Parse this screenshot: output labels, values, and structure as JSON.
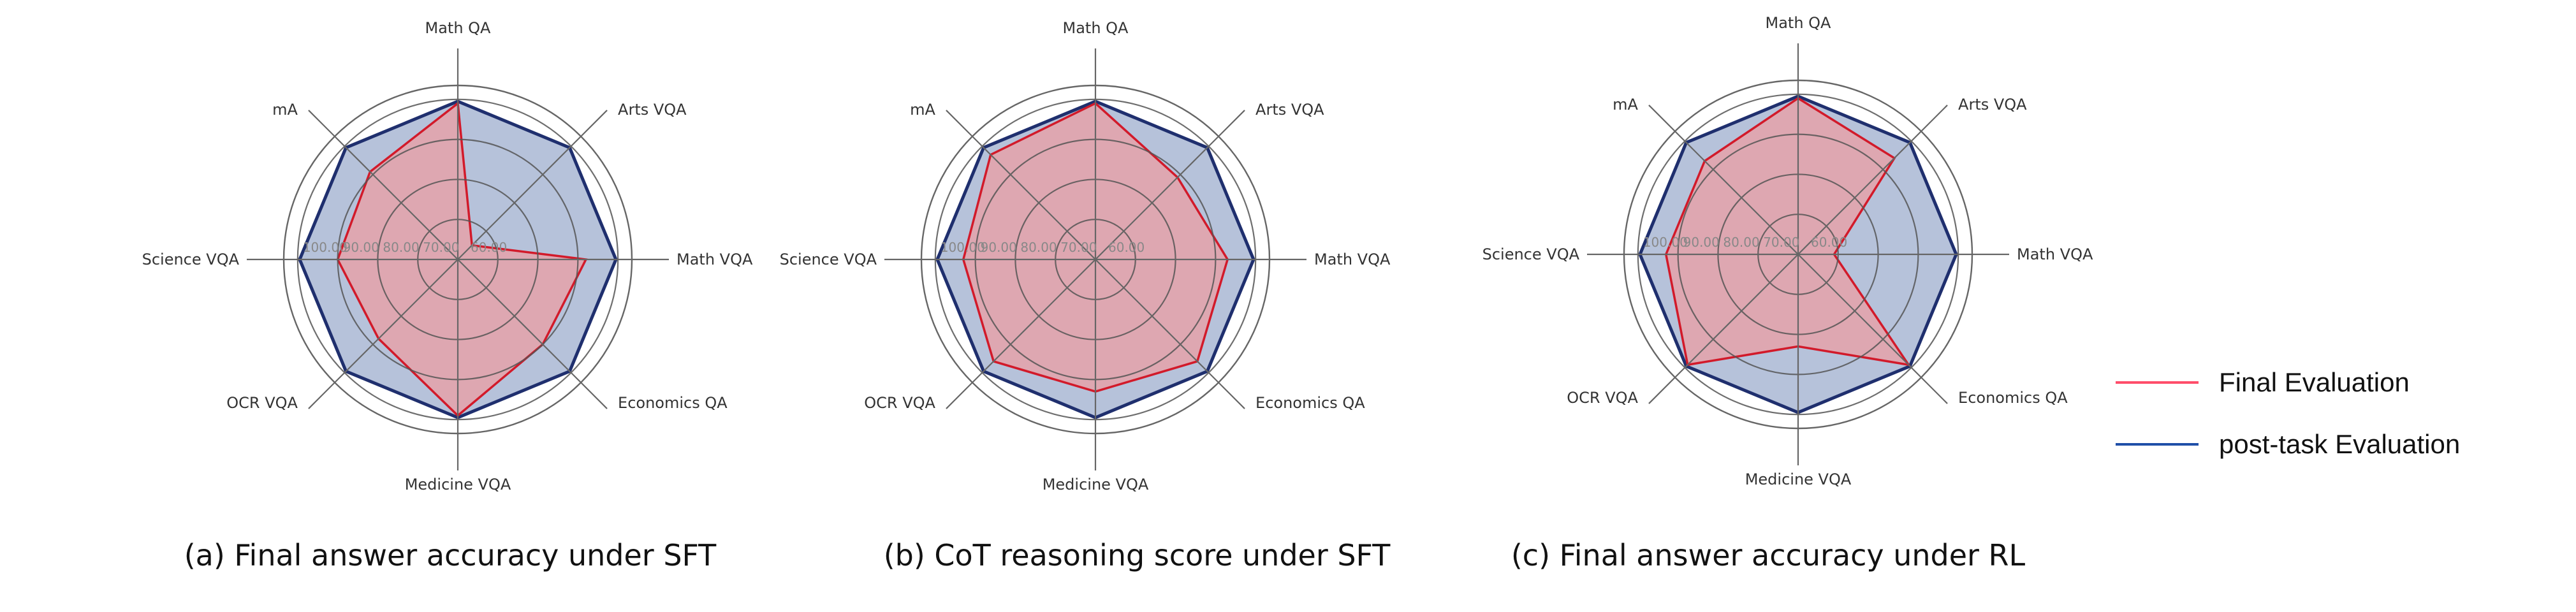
{
  "colors": {
    "final_line": "#d21a2a",
    "final_fill": "#e8a0a6",
    "post_line": "#1f2f6e",
    "post_fill": "#a9b7d4",
    "grid": "#555555",
    "legend_final": "#ff4d6a",
    "legend_post": "#1f4fa8"
  },
  "legend": {
    "final": "Final Evaluation",
    "post": "post-task Evaluation"
  },
  "chart_data": [
    {
      "type": "radar",
      "caption": "(a) Final answer accuracy under SFT",
      "axes": [
        "Math QA",
        "Arts VQA",
        "Math VQA",
        "Economics QA",
        "Medicine VQA",
        "OCR VQA",
        "Science VQA",
        "mA"
      ],
      "ticks": [
        "60.00",
        "70.00",
        "80.00",
        "90.00",
        "100.00"
      ],
      "rlim": [
        60,
        100
      ],
      "series": [
        {
          "name": "post-task Evaluation",
          "values": [
            99.5,
            99.5,
            99.5,
            99.5,
            99.5,
            99.5,
            99.5,
            99.5
          ]
        },
        {
          "name": "Final Evaluation",
          "values": [
            99,
            65,
            92,
            90,
            99,
            88,
            90,
            91
          ]
        }
      ]
    },
    {
      "type": "radar",
      "caption": "(b) CoT reasoning score under SFT",
      "axes": [
        "Math QA",
        "Arts VQA",
        "Math VQA",
        "Economics QA",
        "Medicine VQA",
        "OCR VQA",
        "Science VQA",
        "mA"
      ],
      "ticks": [
        "60.00",
        "70.00",
        "80.00",
        "90.00",
        "100.00"
      ],
      "rlim": [
        60,
        100
      ],
      "series": [
        {
          "name": "post-task Evaluation",
          "values": [
            99.5,
            99.5,
            99.5,
            99.5,
            99.5,
            99.5,
            99.5,
            99.5
          ]
        },
        {
          "name": "Final Evaluation",
          "values": [
            99,
            89,
            93,
            96,
            93,
            96,
            93,
            97
          ]
        }
      ]
    },
    {
      "type": "radar",
      "caption": "(c) Final answer accuracy under RL",
      "axes": [
        "Math QA",
        "Arts VQA",
        "Math VQA",
        "Economics QA",
        "Medicine VQA",
        "OCR VQA",
        "Science VQA",
        "mA"
      ],
      "ticks": [
        "60.00",
        "70.00",
        "80.00",
        "90.00",
        "100.00"
      ],
      "rlim": [
        60,
        100
      ],
      "series": [
        {
          "name": "post-task Evaluation",
          "values": [
            99.5,
            99.5,
            99.5,
            99.5,
            99.5,
            99.5,
            99.5,
            99.5
          ]
        },
        {
          "name": "Final Evaluation",
          "values": [
            99,
            94,
            69,
            99,
            83,
            99,
            93,
            93
          ]
        }
      ]
    }
  ]
}
